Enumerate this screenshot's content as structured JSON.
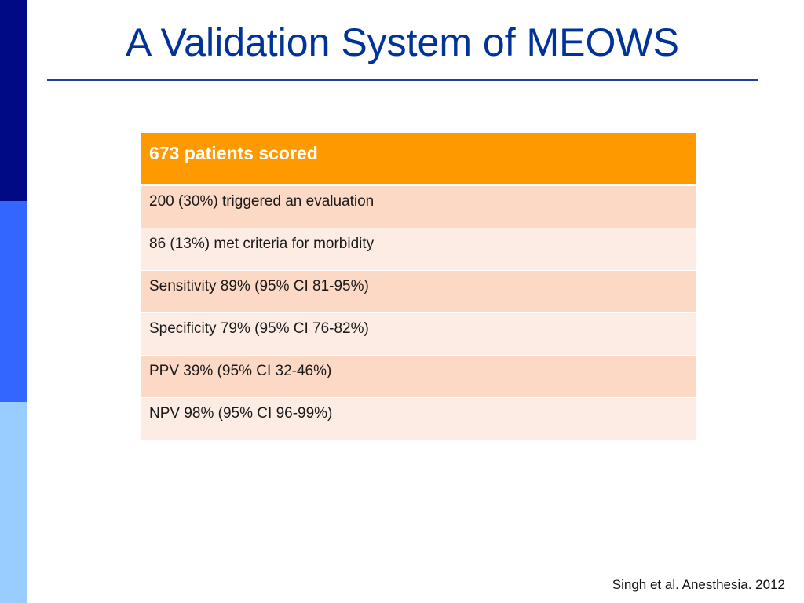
{
  "slide": {
    "title": "A Validation System of MEOWS",
    "citation": "Singh et al. Anesthesia. 2012"
  },
  "table": {
    "header": "673 patients scored",
    "rows": [
      "200 (30%) triggered an evaluation",
      "86 (13%) met criteria for morbidity",
      "Sensitivity 89% (95% CI 81-95%)",
      "Specificity 79% (95% CI 76-82%)",
      "PPV 39% (95% CI 32-46%)",
      "NPV 98% (95% CI 96-99%)"
    ]
  },
  "colors": {
    "title": "#003399",
    "header_bg": "#ff9900",
    "row_odd_bg": "#fcd9c4",
    "row_even_bg": "#fdece4",
    "sidebar_dark": "#000a85",
    "sidebar_mid": "#3366ff",
    "sidebar_light": "#99ccff"
  }
}
